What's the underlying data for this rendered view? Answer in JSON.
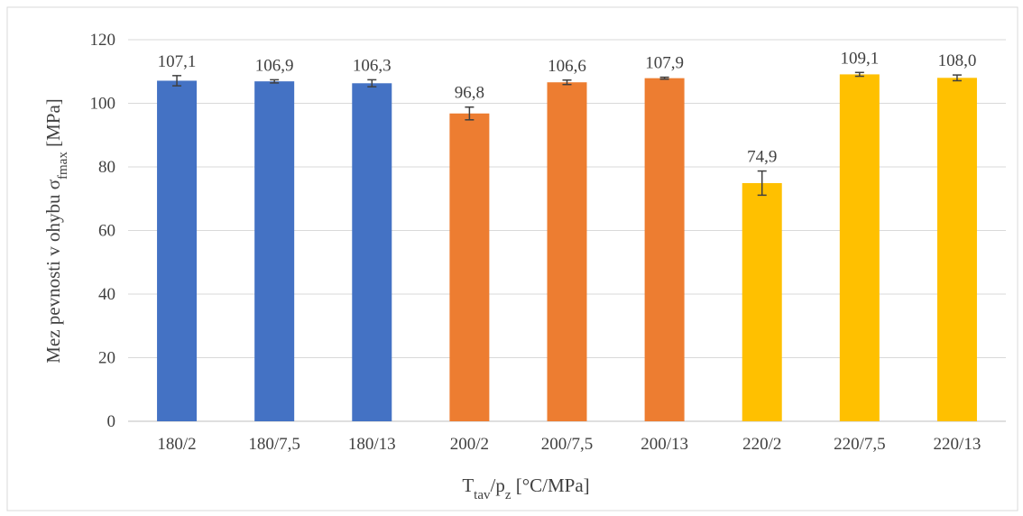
{
  "chart_data": {
    "type": "bar",
    "categories": [
      "180/2",
      "180/7,5",
      "180/13",
      "200/2",
      "200/7,5",
      "200/13",
      "220/2",
      "220/7,5",
      "220/13"
    ],
    "values": [
      107.1,
      106.9,
      106.3,
      96.8,
      106.6,
      107.9,
      74.9,
      109.1,
      108.0
    ],
    "value_labels": [
      "107,1",
      "106,9",
      "106,3",
      "96,8",
      "106,6",
      "107,9",
      "74,9",
      "109,1",
      "108,0"
    ],
    "errors": [
      1.6,
      0.5,
      1.1,
      2.0,
      0.7,
      0.3,
      3.8,
      0.6,
      0.9
    ],
    "bar_colors": [
      "#4472C4",
      "#4472C4",
      "#4472C4",
      "#ED7D31",
      "#ED7D31",
      "#ED7D31",
      "#FFC000",
      "#FFC000",
      "#FFC000"
    ],
    "error_bar_color": "#404040",
    "grid_color": "#D9D9D9",
    "ylim": [
      0,
      120
    ],
    "yticks": [
      0,
      20,
      40,
      60,
      80,
      100,
      120
    ],
    "ylabel": {
      "main": "Mez pevnosti v ohybu σ",
      "sub": "fmax",
      "tail": " [MPa]"
    },
    "xlabel": {
      "p1": "T",
      "s1": "tav",
      "p2": "/p",
      "s2": "z",
      "p3": " [°C/MPa]"
    },
    "grid": true,
    "legend": false
  }
}
